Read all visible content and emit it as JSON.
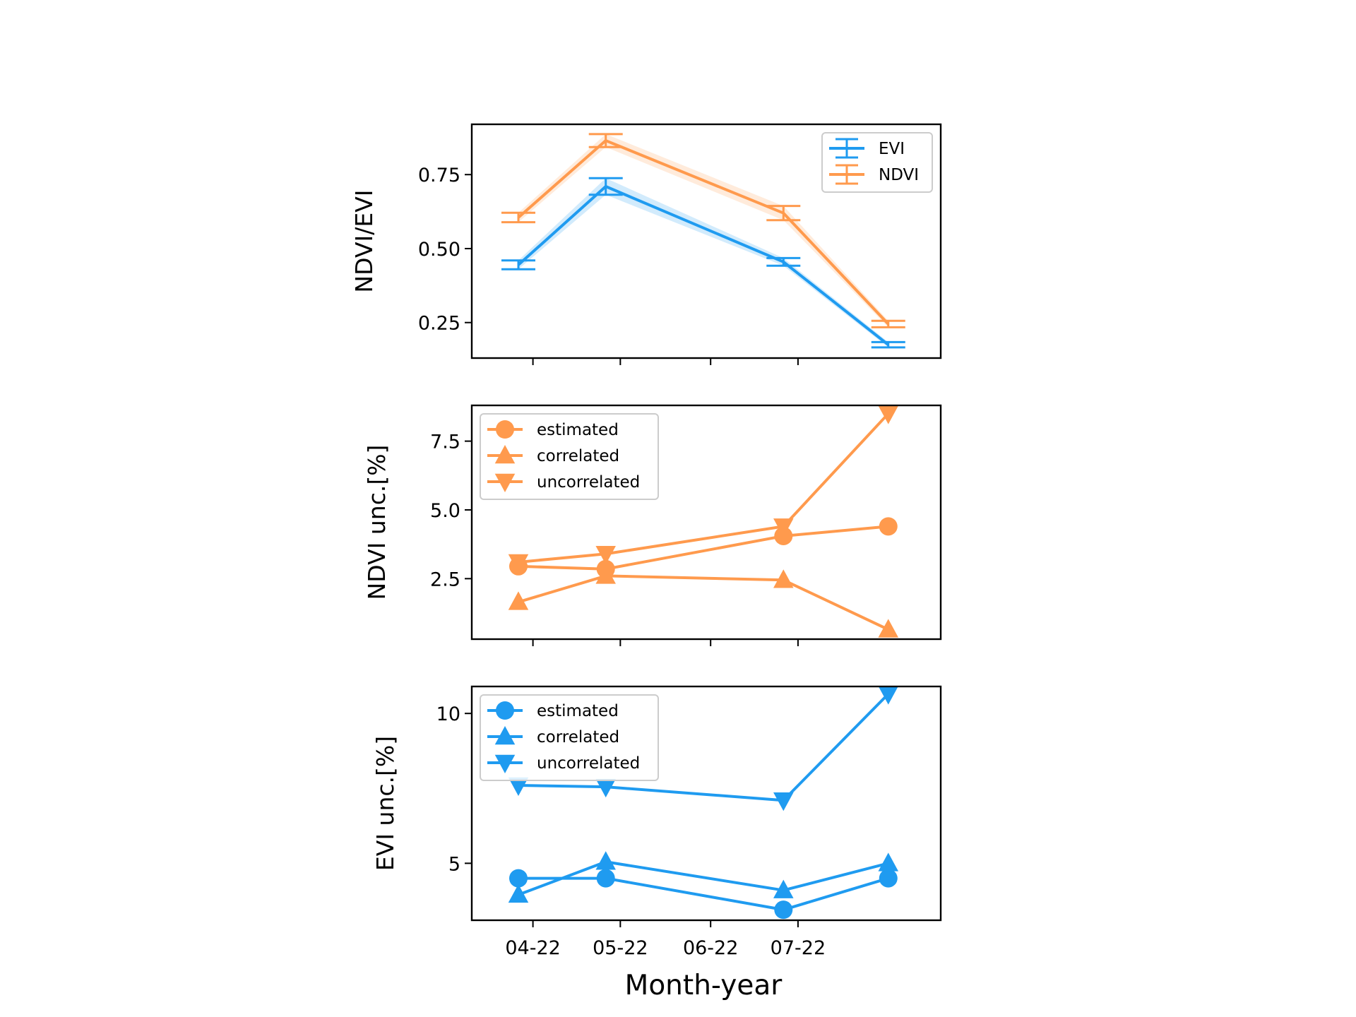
{
  "figure": {
    "xlabel": "Month-year",
    "x_ticks": [
      "04-22",
      "05-22",
      "06-22",
      "07-22"
    ]
  },
  "chart_data": [
    {
      "type": "line",
      "panel": "top",
      "ylabel": "NDVI/EVI",
      "ylim": [
        0.13,
        0.92
      ],
      "y_ticks": [
        "0.25",
        "0.50",
        "0.75"
      ],
      "y_tick_values": [
        0.25,
        0.5,
        0.75
      ],
      "x": [
        "2022-03-27",
        "2022-04-26",
        "2022-06-26",
        "2022-08-01"
      ],
      "xlim": [
        "2022-03-11",
        "2022-08-19"
      ],
      "legend_position": "upper right",
      "grid": false,
      "series": [
        {
          "name": "EVI",
          "color": "#1f9bf0",
          "marker": "errorbar",
          "values": [
            0.445,
            0.71,
            0.455,
            0.175
          ],
          "errors": [
            0.015,
            0.028,
            0.013,
            0.009
          ]
        },
        {
          "name": "NDVI",
          "color": "#ff9a4d",
          "marker": "errorbar",
          "values": [
            0.605,
            0.865,
            0.62,
            0.245
          ],
          "errors": [
            0.016,
            0.022,
            0.024,
            0.011
          ]
        }
      ]
    },
    {
      "type": "line",
      "panel": "middle",
      "ylabel": "NDVI unc.[%]",
      "ylim": [
        0.3,
        8.8
      ],
      "y_ticks": [
        "2.5",
        "5.0",
        "7.5"
      ],
      "y_tick_values": [
        2.5,
        5.0,
        7.5
      ],
      "x": [
        "2022-03-27",
        "2022-04-26",
        "2022-06-26",
        "2022-08-01"
      ],
      "xlim": [
        "2022-03-11",
        "2022-08-19"
      ],
      "legend_position": "upper left",
      "grid": false,
      "color": "#ff9a4d",
      "series": [
        {
          "name": "estimated",
          "marker": "circle",
          "values": [
            2.95,
            2.85,
            4.05,
            4.4
          ]
        },
        {
          "name": "correlated",
          "marker": "triangle-up",
          "values": [
            1.65,
            2.6,
            2.45,
            0.65
          ]
        },
        {
          "name": "uncorrelated",
          "marker": "triangle-down",
          "values": [
            3.1,
            3.4,
            4.4,
            8.5
          ]
        }
      ]
    },
    {
      "type": "line",
      "panel": "bottom",
      "ylabel": "EVI unc.[%]",
      "ylim": [
        3.1,
        10.9
      ],
      "y_ticks": [
        "5",
        "10"
      ],
      "y_tick_values": [
        5,
        10
      ],
      "x": [
        "2022-03-27",
        "2022-04-26",
        "2022-06-26",
        "2022-08-01"
      ],
      "xlim": [
        "2022-03-11",
        "2022-08-19"
      ],
      "legend_position": "upper left",
      "grid": false,
      "color": "#1f9bf0",
      "series": [
        {
          "name": "estimated",
          "marker": "circle",
          "values": [
            4.5,
            4.5,
            3.45,
            4.5
          ]
        },
        {
          "name": "correlated",
          "marker": "triangle-up",
          "values": [
            3.95,
            5.05,
            4.1,
            5.0
          ]
        },
        {
          "name": "uncorrelated",
          "marker": "triangle-down",
          "values": [
            7.6,
            7.55,
            7.1,
            10.65
          ]
        }
      ]
    }
  ]
}
